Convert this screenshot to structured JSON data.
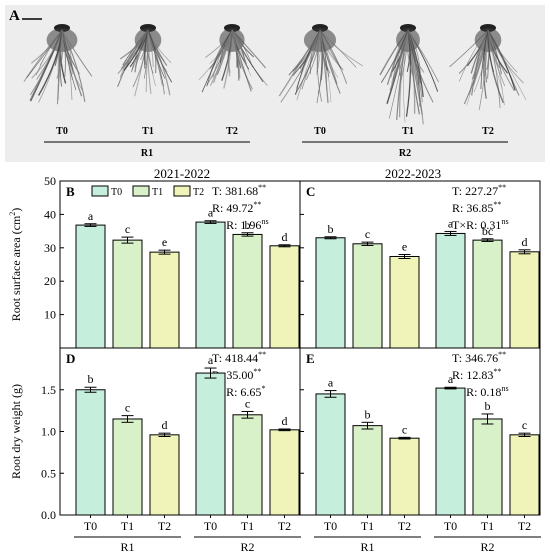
{
  "panel_a": {
    "label": "A",
    "treatments": [
      "T0",
      "T1",
      "T2"
    ],
    "groups": [
      "R1",
      "R2"
    ]
  },
  "headers": {
    "left": "2021-2022",
    "right": "2022-2023"
  },
  "colors": {
    "T0": "#c6eedd",
    "T1": "#d8f1c9",
    "T2": "#f0f4b8"
  },
  "legend": [
    "T0",
    "T1",
    "T2"
  ],
  "chart_data": [
    {
      "id": "B",
      "type": "bar",
      "letter": "B",
      "ylabel": "Root surface area (cm²)",
      "ylim": [
        0,
        50
      ],
      "yticks": [
        "10",
        "20",
        "30",
        "40",
        "50"
      ],
      "yvals": [
        10,
        20,
        30,
        40,
        50
      ],
      "groups": [
        "R1",
        "R2"
      ],
      "categories": [
        "T0",
        "T1",
        "T2"
      ],
      "values": [
        [
          36.8,
          32.3,
          28.7
        ],
        [
          37.7,
          34.0,
          30.6
        ]
      ],
      "errors": [
        [
          0.4,
          0.9,
          0.6
        ],
        [
          0.4,
          0.5,
          0.3
        ]
      ],
      "letters": [
        [
          "a",
          "c",
          "e"
        ],
        [
          "a",
          "b",
          "d"
        ]
      ],
      "stats": [
        {
          "base": "T: 381.68",
          "sup": "**"
        },
        {
          "base": "R: 49.72",
          "sup": "**"
        },
        {
          "base": "T×R: 1.96",
          "sup": "ns"
        }
      ]
    },
    {
      "id": "C",
      "type": "bar",
      "letter": "C",
      "ylabel": "",
      "ylim": [
        0,
        50
      ],
      "yticks": [],
      "yvals": [
        10,
        20,
        30,
        40,
        50
      ],
      "groups": [
        "R1",
        "R2"
      ],
      "categories": [
        "T0",
        "T1",
        "T2"
      ],
      "values": [
        [
          33.0,
          31.2,
          27.4
        ],
        [
          34.3,
          32.3,
          28.8
        ]
      ],
      "errors": [
        [
          0.3,
          0.5,
          0.6
        ],
        [
          0.6,
          0.4,
          0.6
        ]
      ],
      "letters": [
        [
          "b",
          "c",
          "e"
        ],
        [
          "a",
          "bc",
          "d"
        ]
      ],
      "stats": [
        {
          "base": "T: 227.27",
          "sup": "**"
        },
        {
          "base": "R: 36.85",
          "sup": "**"
        },
        {
          "base": "T×R: 0.31",
          "sup": "ns"
        }
      ]
    },
    {
      "id": "D",
      "type": "bar",
      "letter": "D",
      "ylabel": "Root dry weight (g)",
      "ylim": [
        0,
        2.0
      ],
      "yticks": [
        "0.0",
        "0.5",
        "1.0",
        "1.5"
      ],
      "yvals": [
        0,
        0.5,
        1.0,
        1.5
      ],
      "groups": [
        "R1",
        "R2"
      ],
      "categories": [
        "T0",
        "T1",
        "T2"
      ],
      "values": [
        [
          1.5,
          1.15,
          0.96
        ],
        [
          1.7,
          1.2,
          1.02
        ]
      ],
      "errors": [
        [
          0.03,
          0.04,
          0.02
        ],
        [
          0.06,
          0.04,
          0.01
        ]
      ],
      "letters": [
        [
          "b",
          "c",
          "d"
        ],
        [
          "a",
          "c",
          "d"
        ]
      ],
      "stats": [
        {
          "base": "T: 418.44",
          "sup": "**"
        },
        {
          "base": "R: 35.00",
          "sup": "**"
        },
        {
          "base": "T×R: 6.65",
          "sup": "*"
        }
      ]
    },
    {
      "id": "E",
      "type": "bar",
      "letter": "E",
      "ylabel": "",
      "ylim": [
        0,
        2.0
      ],
      "yticks": [],
      "yvals": [
        0,
        0.5,
        1.0,
        1.5
      ],
      "groups": [
        "R1",
        "R2"
      ],
      "categories": [
        "T0",
        "T1",
        "T2"
      ],
      "values": [
        [
          1.45,
          1.07,
          0.92
        ],
        [
          1.52,
          1.15,
          0.96
        ]
      ],
      "errors": [
        [
          0.04,
          0.04,
          0.01
        ],
        [
          0.01,
          0.06,
          0.02
        ]
      ],
      "letters": [
        [
          "a",
          "b",
          "c"
        ],
        [
          "a",
          "b",
          "c"
        ]
      ],
      "stats": [
        {
          "base": "T: 346.76",
          "sup": "**"
        },
        {
          "base": "R: 12.83",
          "sup": "**"
        },
        {
          "base": "T×R: 0.18",
          "sup": "ns"
        }
      ]
    }
  ]
}
